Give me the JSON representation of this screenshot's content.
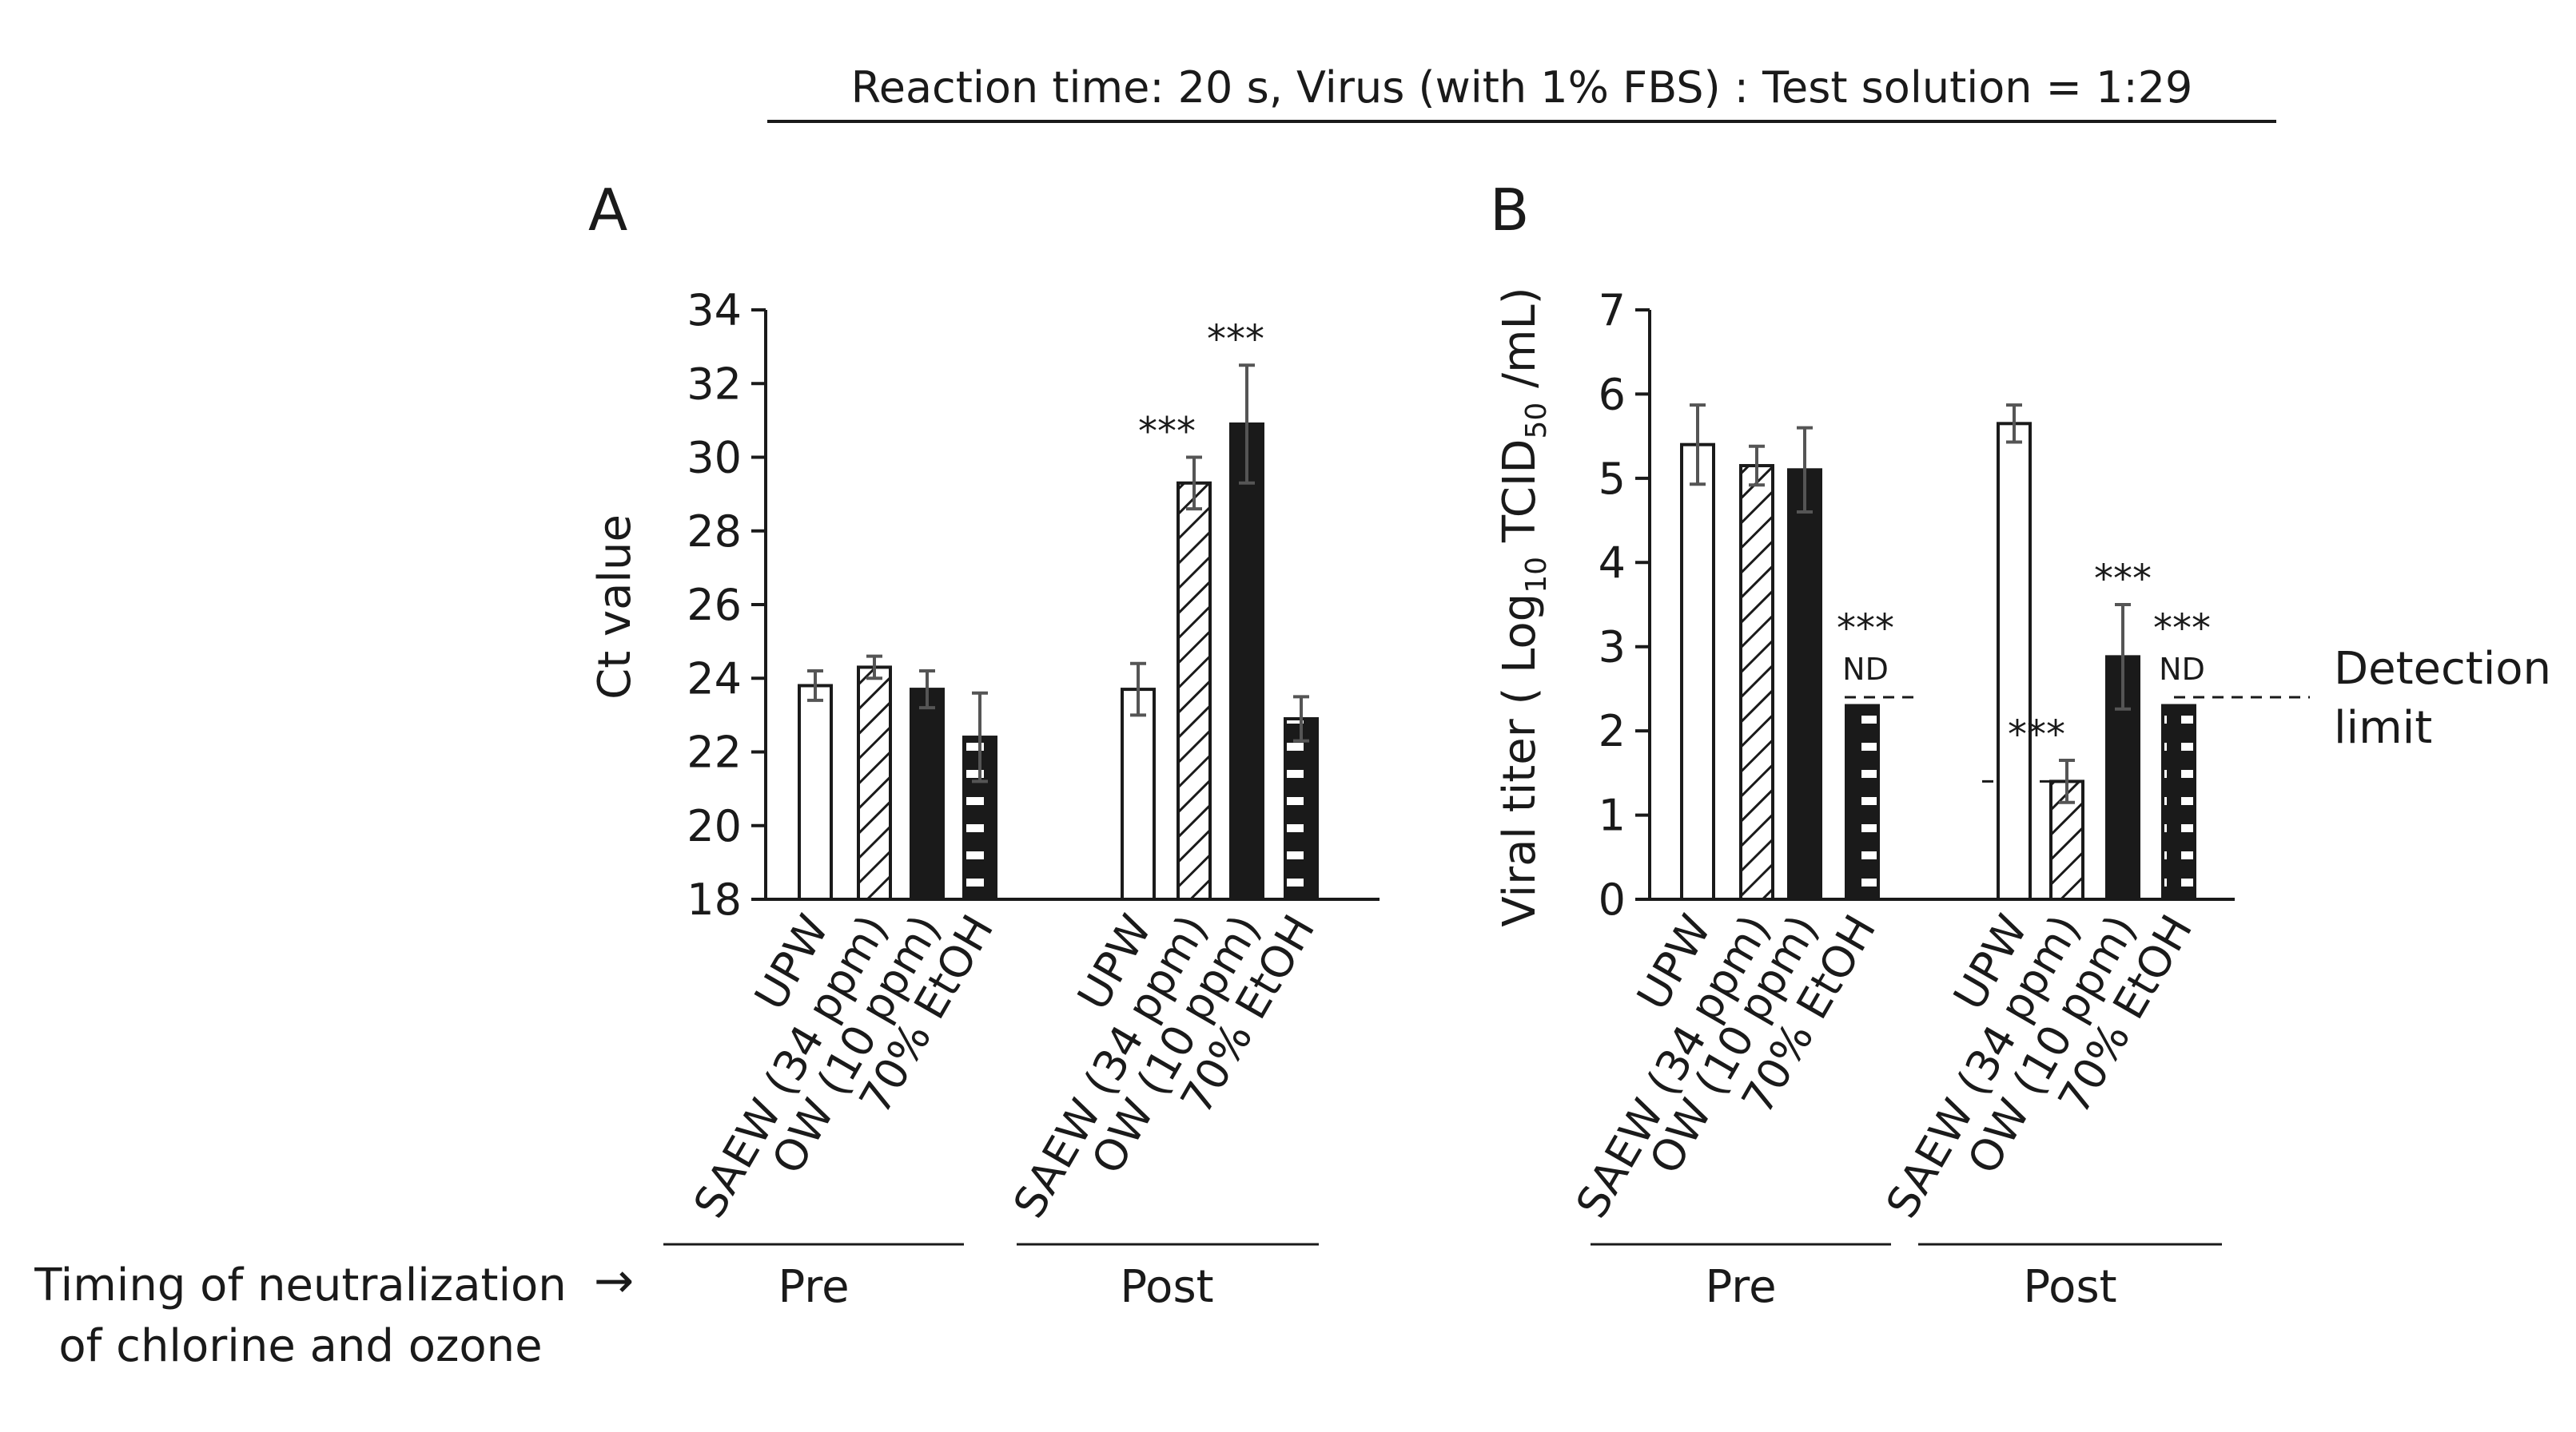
{
  "header": {
    "title": "Reaction time: 20 s, Virus (with 1% FBS) : Test solution  = 1:29"
  },
  "footer": {
    "timing_label_line1": "Timing of neutralization",
    "timing_label_line2": "of chlorine and ozone",
    "arrow": "→"
  },
  "colors": {
    "UPW": "#ffffff",
    "SAEW": "hatched-diagonal",
    "OW": "#1a1a1a",
    "EtOH": "black-with-white-dashes",
    "errorbar": "#555555"
  },
  "chart_data": [
    {
      "type": "bar",
      "panel_label": "A",
      "title": "",
      "ylabel": "Ct value",
      "ylim": [
        18,
        34
      ],
      "yticks": [
        "18",
        "20",
        "22",
        "24",
        "26",
        "28",
        "30",
        "32",
        "34"
      ],
      "categories": [
        "UPW",
        "SAEW (34 ppm)",
        "OW (10 ppm)",
        "70% EtOH"
      ],
      "groups": [
        {
          "name": "Pre",
          "values": [
            23.8,
            24.3,
            23.7,
            22.4
          ],
          "errors": [
            0.4,
            0.3,
            0.5,
            1.2
          ],
          "annotations": [
            "",
            "",
            "",
            ""
          ]
        },
        {
          "name": "Post",
          "values": [
            23.7,
            29.3,
            30.9,
            22.9
          ],
          "errors": [
            0.7,
            0.7,
            1.6,
            0.6
          ],
          "annotations": [
            "",
            "***",
            "***",
            ""
          ]
        }
      ]
    },
    {
      "type": "bar",
      "panel_label": "B",
      "title": "",
      "ylabel_main": "Viral titer ( Log",
      "ylabel_sub": "10",
      "ylabel_mid": " TCID",
      "ylabel_sub2": "50",
      "ylabel_end": " /mL)",
      "ylim": [
        0,
        7
      ],
      "yticks": [
        "0",
        "1",
        "2",
        "3",
        "4",
        "5",
        "6",
        "7"
      ],
      "categories": [
        "UPW",
        "SAEW (34 ppm)",
        "OW (10 ppm)",
        "70% EtOH"
      ],
      "detection_label_line1": "Detection",
      "detection_label_line2": "limit",
      "nd_label": "ND",
      "groups": [
        {
          "name": "Pre",
          "values": [
            5.4,
            5.15,
            5.1,
            2.3
          ],
          "errors": [
            0.47,
            0.23,
            0.5,
            0
          ],
          "annotations": [
            "",
            "",
            "",
            "***"
          ],
          "nd": [
            false,
            false,
            false,
            true
          ],
          "detection_limit": 2.4
        },
        {
          "name": "Post",
          "values": [
            5.65,
            1.4,
            2.88,
            2.3
          ],
          "errors": [
            0.22,
            0.25,
            0.62,
            0
          ],
          "annotations": [
            "",
            "***",
            "***",
            "***"
          ],
          "nd": [
            false,
            false,
            false,
            true
          ],
          "detection_limits": [
            1.4,
            2.4
          ]
        }
      ]
    }
  ]
}
